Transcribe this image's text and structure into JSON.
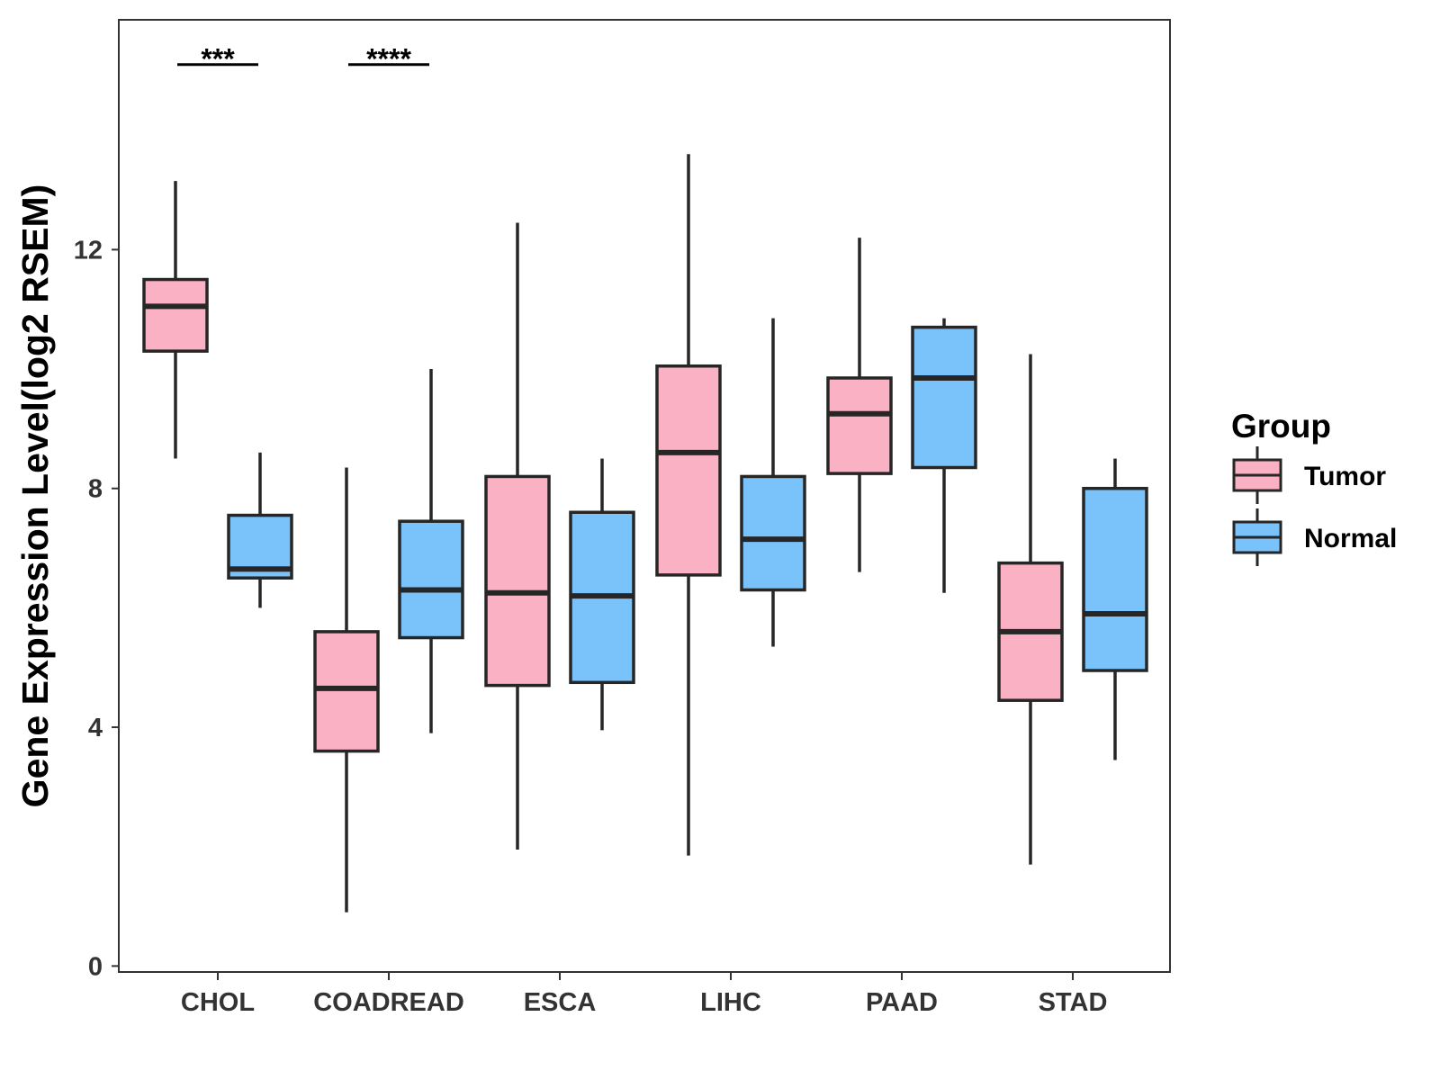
{
  "chart_data": {
    "type": "boxplot",
    "title": "",
    "xlabel": "",
    "ylabel": "Gene Expression Level(log2 RSEM)",
    "ylim": [
      -0.1,
      15.85
    ],
    "yticks": [
      0,
      4,
      8,
      12
    ],
    "ytick_labels": [
      "0",
      "4",
      "8",
      "12"
    ],
    "grid": false,
    "legend_position": "right",
    "categories": [
      "CHOL",
      "COADREAD",
      "ESCA",
      "LIHC",
      "PAAD",
      "STAD"
    ],
    "legend": {
      "title": "Group",
      "entries": [
        "Tumor",
        "Normal"
      ]
    },
    "series": [
      {
        "name": "Tumor",
        "color": "#FBB1C4",
        "boxes": [
          {
            "min": 8.5,
            "q1": 10.3,
            "median": 11.05,
            "q3": 11.5,
            "max": 13.15
          },
          {
            "min": 0.9,
            "q1": 3.6,
            "median": 4.65,
            "q3": 5.6,
            "max": 8.35
          },
          {
            "min": 1.95,
            "q1": 4.7,
            "median": 6.25,
            "q3": 8.2,
            "max": 12.45
          },
          {
            "min": 1.85,
            "q1": 6.55,
            "median": 8.6,
            "q3": 10.05,
            "max": 13.6
          },
          {
            "min": 6.6,
            "q1": 8.25,
            "median": 9.25,
            "q3": 9.85,
            "max": 12.2
          },
          {
            "min": 1.7,
            "q1": 4.45,
            "median": 5.6,
            "q3": 6.75,
            "max": 10.25
          }
        ]
      },
      {
        "name": "Normal",
        "color": "#7AC3FA",
        "boxes": [
          {
            "min": 6.0,
            "q1": 6.5,
            "median": 6.65,
            "q3": 7.55,
            "max": 8.6
          },
          {
            "min": 3.9,
            "q1": 5.5,
            "median": 6.3,
            "q3": 7.45,
            "max": 10.0
          },
          {
            "min": 3.95,
            "q1": 4.75,
            "median": 6.2,
            "q3": 7.6,
            "max": 8.5
          },
          {
            "min": 5.35,
            "q1": 6.3,
            "median": 7.15,
            "q3": 8.2,
            "max": 10.85
          },
          {
            "min": 6.25,
            "q1": 8.35,
            "median": 9.85,
            "q3": 10.7,
            "max": 10.85
          },
          {
            "min": 3.45,
            "q1": 4.95,
            "median": 5.9,
            "q3": 8.0,
            "max": 8.5
          }
        ]
      }
    ],
    "annotations": [
      {
        "category": "CHOL",
        "text": "***",
        "y": 15.1
      },
      {
        "category": "COADREAD",
        "text": "****",
        "y": 15.1
      }
    ]
  },
  "colors": {
    "tumor": "#FBB1C4",
    "normal": "#7AC3FA",
    "box_outline": "#262626",
    "panel_border": "#333333",
    "tick_text": "#333333"
  }
}
